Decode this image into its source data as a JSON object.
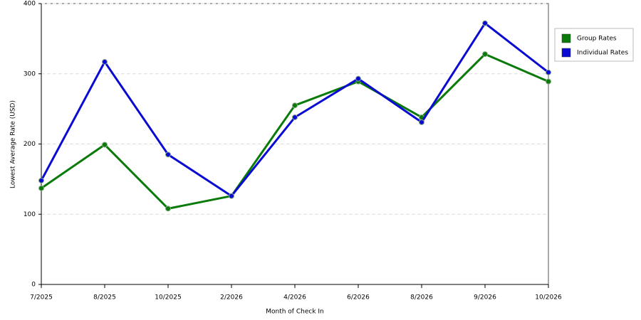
{
  "chart_data": {
    "type": "line",
    "x_label": "Month of Check In",
    "y_label": "Lowest Average Rate (USD)",
    "categories": [
      "7/2025",
      "8/2025",
      "10/2025",
      "2/2026",
      "4/2026",
      "6/2026",
      "8/2026",
      "9/2026",
      "10/2026"
    ],
    "series": [
      {
        "name": "Group Rates",
        "color": "#0a7a0a",
        "values": [
          137,
          199,
          108,
          126,
          255,
          289,
          238,
          328,
          289
        ]
      },
      {
        "name": "Individual Rates",
        "color": "#0a0ad2",
        "values": [
          148,
          317,
          185,
          126,
          238,
          293,
          231,
          372,
          302
        ]
      }
    ],
    "ylim": [
      0,
      400
    ],
    "yticks": [
      0,
      100,
      200,
      300,
      400
    ],
    "grid": true
  }
}
